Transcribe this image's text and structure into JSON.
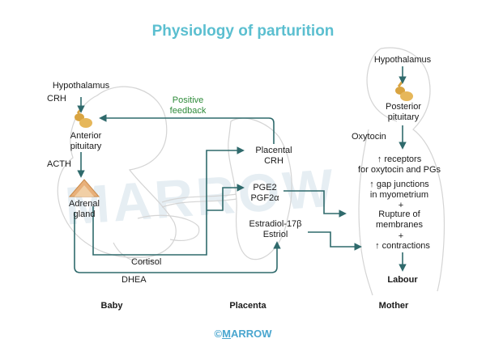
{
  "title": "Physiology of parturition",
  "watermark": "MARROW",
  "footer": {
    "copyright": "©",
    "brand_underlined": "M",
    "brand_rest": "ARROW"
  },
  "columns": {
    "baby": "Baby",
    "placenta": "Placenta",
    "mother": "Mother"
  },
  "baby": {
    "hypothalamus": "Hypothalamus",
    "crh": "CRH",
    "anterior_pituitary": [
      "Anterior",
      "pituitary"
    ],
    "acth": "ACTH",
    "adrenal_gland": [
      "Adrenal",
      "gland"
    ]
  },
  "feedback": [
    "Positive",
    "feedback"
  ],
  "placenta": {
    "placental_crh": [
      "Placental",
      "CRH"
    ],
    "pge2": "PGE2",
    "pgf2a": "PGF2α",
    "estradiol": "Estradiol-17β",
    "estriol": "Estriol"
  },
  "flows": {
    "cortisol": "Cortisol",
    "dhea": "DHEA"
  },
  "mother": {
    "hypothalamus": "Hypothalamus",
    "posterior_pituitary": [
      "Posterior",
      "pituitary"
    ],
    "oxytocin": "Oxytocin",
    "receptors": [
      "↑ receptors",
      "for oxytocin and PGs"
    ],
    "gap_junctions": [
      "↑ gap junctions",
      "in myometrium"
    ],
    "plus1": "+",
    "rupture": [
      "Rupture of",
      "membranes"
    ],
    "plus2": "+",
    "contractions": "↑ contractions",
    "labour": "Labour"
  },
  "colors": {
    "title": "#5bbfd0",
    "arrow": "#2f6a6c",
    "feedback": "#2e8b3a",
    "gland": "#d9a441",
    "silhouette": "#cfcfcf"
  }
}
